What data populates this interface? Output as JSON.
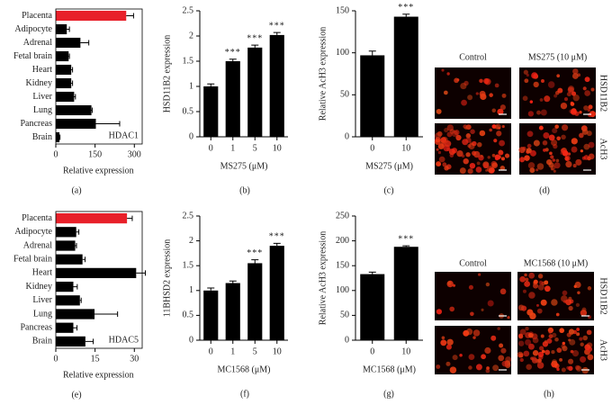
{
  "chart_data": [
    {
      "type": "hbar",
      "panel": "(a)",
      "label": "HDAC1",
      "xlabel": "Relative expression",
      "categories": [
        "Placenta",
        "Adipocyte",
        "Adrenal",
        "Fetal brain",
        "Heart",
        "Kidney",
        "Liver",
        "Lung",
        "Pancreas",
        "Brain"
      ],
      "values": [
        269,
        42,
        94,
        49,
        59,
        59,
        70,
        136,
        153,
        14
      ],
      "errors": [
        28,
        10,
        32,
        3,
        5,
        5,
        5,
        3,
        91,
        2
      ],
      "colors": [
        "#e8202a",
        "#000000",
        "#000000",
        "#000000",
        "#000000",
        "#000000",
        "#000000",
        "#000000",
        "#000000",
        "#000000"
      ],
      "xlim": [
        0,
        330
      ],
      "xticks": [
        0,
        150,
        300
      ]
    },
    {
      "type": "bar",
      "panel": "(b)",
      "ylabel": "HSD11B2 expression",
      "xlabel": "MS275 (μM)",
      "categories": [
        "0",
        "1",
        "5",
        "10"
      ],
      "values": [
        1.0,
        1.5,
        1.77,
        2.02
      ],
      "errors": [
        0.05,
        0.04,
        0.05,
        0.05
      ],
      "annotations": [
        null,
        "***",
        "***",
        "***"
      ],
      "color": "#000000",
      "ylim": [
        0,
        2.5
      ],
      "yticks": [
        0,
        0.5,
        1,
        1.5,
        2,
        2.5
      ]
    },
    {
      "type": "bar",
      "panel": "(c)",
      "ylabel": "Relative AcH3 expression",
      "xlabel": "MS275 (μM)",
      "categories": [
        "0",
        "10"
      ],
      "values": [
        97,
        143
      ],
      "errors": [
        5,
        3
      ],
      "annotations": [
        null,
        "***"
      ],
      "color": "#000000",
      "ylim": [
        0,
        150
      ],
      "yticks": [
        0,
        50,
        100,
        150
      ]
    },
    {
      "type": "hbar",
      "panel": "(e)",
      "label": "HDAC5",
      "xlabel": "Relative expression",
      "categories": [
        "Placenta",
        "Adipocyte",
        "Adrenal",
        "Fetal brain",
        "Heart",
        "Kidney",
        "Liver",
        "Lung",
        "Pancreas",
        "Brain"
      ],
      "values": [
        27.2,
        7.8,
        7.4,
        10.2,
        30.7,
        6.7,
        9.2,
        14.8,
        6.7,
        11.3
      ],
      "errors": [
        2,
        1,
        0.5,
        1,
        3.5,
        1.5,
        0.5,
        8.8,
        1.4,
        3
      ],
      "colors": [
        "#e8202a",
        "#000000",
        "#000000",
        "#000000",
        "#000000",
        "#000000",
        "#000000",
        "#000000",
        "#000000",
        "#000000"
      ],
      "xlim": [
        0,
        33
      ],
      "xticks": [
        0,
        15,
        30
      ]
    },
    {
      "type": "bar",
      "panel": "(f)",
      "ylabel": "11BHSD2 expression",
      "xlabel": "MC1568 (μM)",
      "categories": [
        "0",
        "1",
        "5",
        "10"
      ],
      "values": [
        1.0,
        1.15,
        1.55,
        1.9
      ],
      "errors": [
        0.05,
        0.04,
        0.07,
        0.05
      ],
      "annotations": [
        null,
        null,
        "***",
        "***"
      ],
      "color": "#000000",
      "ylim": [
        0,
        2.5
      ],
      "yticks": [
        0,
        0.5,
        1,
        1.5,
        2,
        2.5
      ]
    },
    {
      "type": "bar",
      "panel": "(g)",
      "ylabel": "Relative AcH3 expression",
      "xlabel": "MC1568 (μM)",
      "categories": [
        "0",
        "10"
      ],
      "values": [
        133,
        188
      ],
      "errors": [
        4,
        2
      ],
      "annotations": [
        null,
        "***"
      ],
      "color": "#000000",
      "ylim": [
        0,
        250
      ],
      "yticks": [
        0,
        50,
        100,
        150,
        200,
        250
      ]
    }
  ],
  "images": [
    {
      "panel": "(d)",
      "columns": [
        "Control",
        "MS275 (10 μM)"
      ],
      "rows": [
        "HSD11B2",
        "AcH3"
      ]
    },
    {
      "panel": "(h)",
      "columns": [
        "Control",
        "MC1568 (10 μM)"
      ],
      "rows": [
        "HSD11B2",
        "AcH3"
      ]
    }
  ]
}
